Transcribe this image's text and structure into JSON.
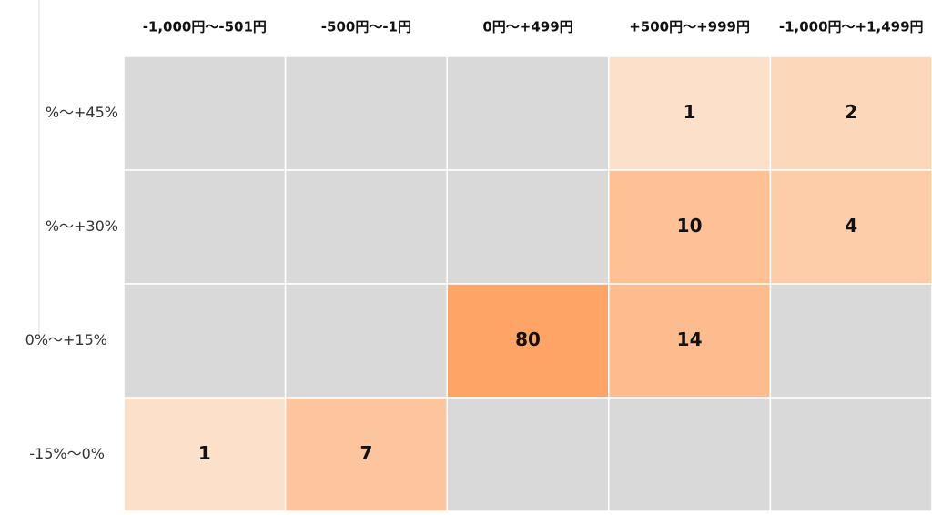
{
  "chart_data": {
    "type": "heatmap",
    "columns": [
      "-1,000円～-501円",
      "-500円～-1円",
      "0円～+499円",
      "+500円～+999円",
      "-1,000円～+1,499円"
    ],
    "rows": [
      "%～+45%",
      "%～+30%",
      "0%～+15%",
      "-15%～0%"
    ],
    "values": [
      [
        null,
        null,
        null,
        1,
        2
      ],
      [
        null,
        null,
        null,
        10,
        4
      ],
      [
        null,
        null,
        80,
        14,
        null
      ],
      [
        1,
        7,
        null,
        null,
        null
      ]
    ],
    "colors": [
      "#fde0ca",
      "#fea466"
    ],
    "empty_color": "#d9d9d9",
    "color_scale": "log"
  }
}
